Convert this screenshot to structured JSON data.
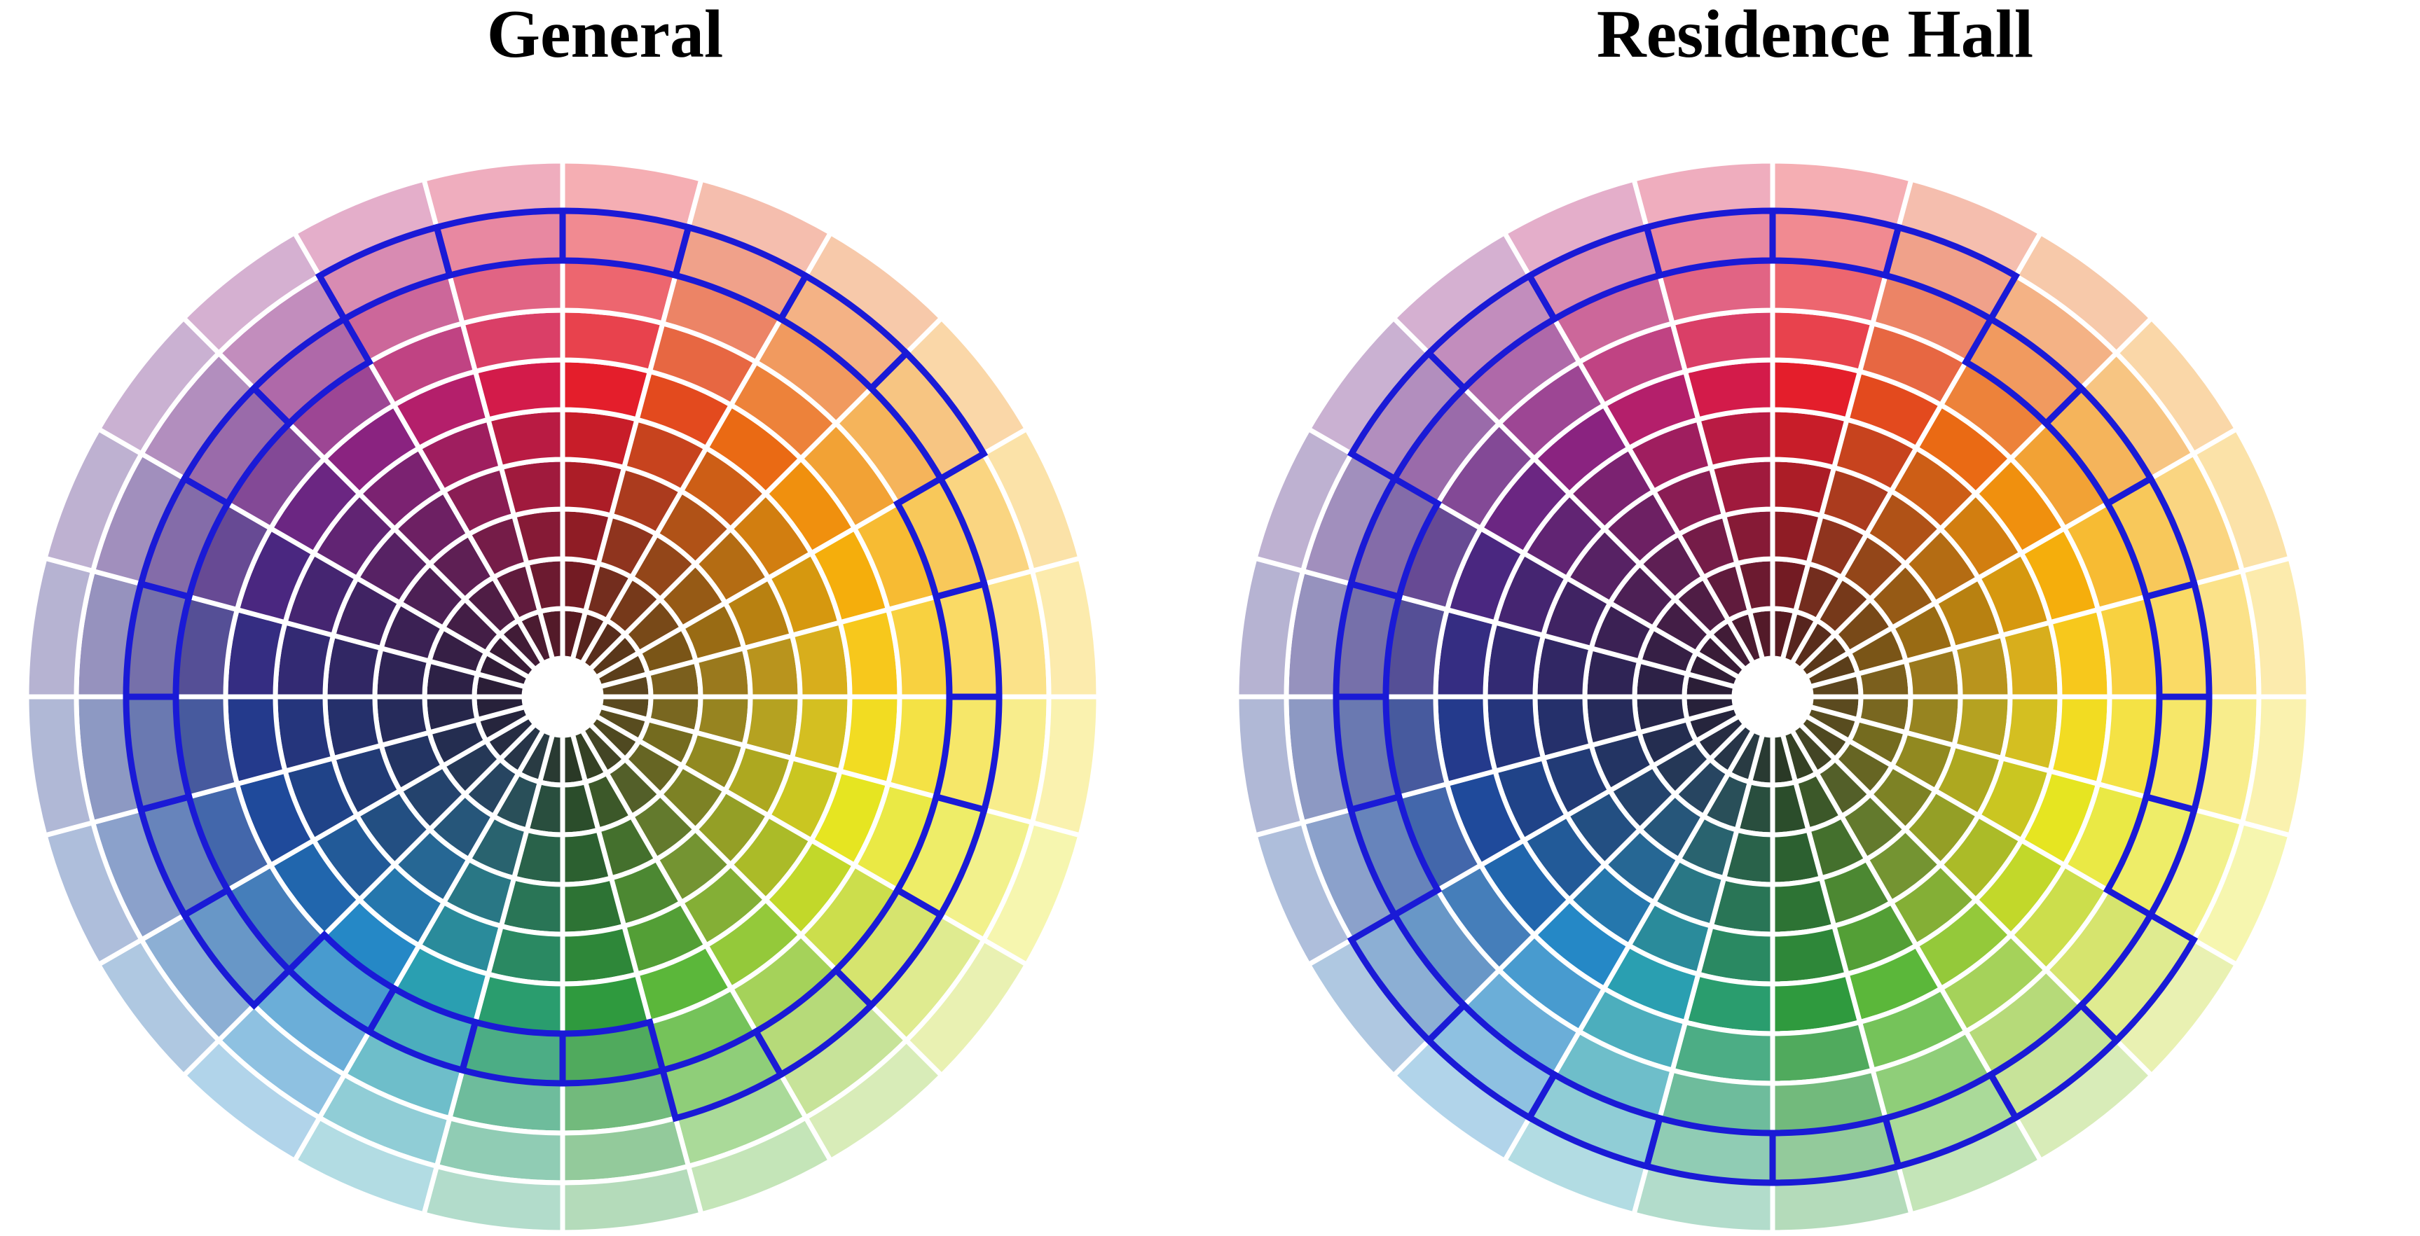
{
  "panels": [
    {
      "title": "General",
      "highlight": [
        9,
        9,
        9,
        9,
        8,
        8,
        8,
        8,
        8,
        8,
        8,
        7,
        7,
        7,
        7,
        8,
        8,
        8,
        8,
        8,
        8,
        8,
        9,
        9
      ]
    },
    {
      "title": "Residence Hall",
      "highlight": [
        9,
        9,
        8,
        8,
        8,
        8,
        8,
        8,
        9,
        9,
        9,
        9,
        9,
        9,
        9,
        9,
        8,
        8,
        8,
        8,
        9,
        9,
        9,
        9
      ]
    }
  ],
  "colors": {
    "outline": "#1a1ad6",
    "separator": "#ffffff"
  },
  "wheel": {
    "sectors": 24,
    "rings": 10,
    "hues": [
      "#e41e2b",
      "#e34a1e",
      "#ea6a14",
      "#f0900e",
      "#f5ae0c",
      "#f7c81c",
      "#f2dc22",
      "#e6e521",
      "#c2d82a",
      "#94c93a",
      "#5bb73a",
      "#2f9a3e",
      "#2a9d6e",
      "#2a9fb1",
      "#2588c6",
      "#2166ad",
      "#1f4a9b",
      "#243a8c",
      "#352d82",
      "#4a2780",
      "#6b2682",
      "#8a2380",
      "#b41f6b",
      "#d31b4a"
    ]
  }
}
